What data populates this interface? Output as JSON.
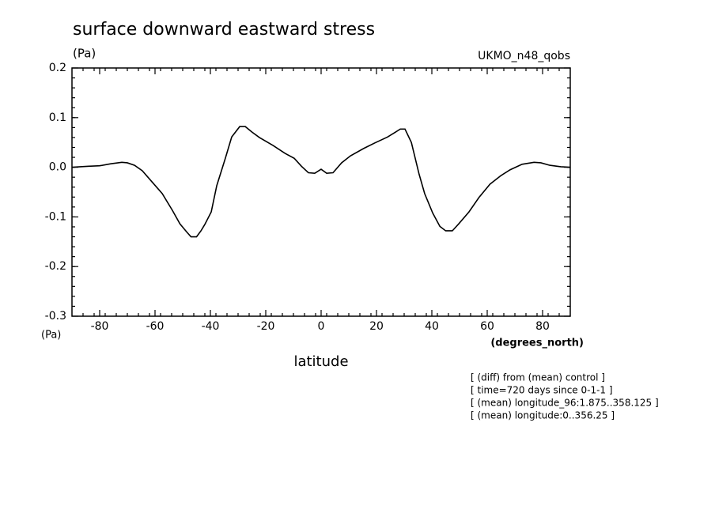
{
  "chart_data": {
    "type": "line",
    "title": "surface downward eastward stress",
    "y_unit_top": "(Pa)",
    "y_unit_bottom": "(Pa)",
    "dataset": "UKMO_n48_qobs",
    "x_unit": "(degrees_north)",
    "x_label": "latitude",
    "notes": [
      "[ (diff) from (mean) control ]",
      "[ time=720 days since 0-1-1 ]",
      "[ (mean) longitude_96:1.875..358.125 ]",
      "[ (mean) longitude:0..356.25 ]"
    ],
    "color": "#000000",
    "x": [
      -90,
      -84,
      -80,
      -76,
      -72,
      -70,
      -67.4,
      -64.6,
      -61,
      -57.4,
      -53.7,
      -51,
      -48.6,
      -47,
      -45,
      -43.4,
      -42,
      -39.7,
      -37.7,
      -34.6,
      -32.3,
      -29.4,
      -27.4,
      -25,
      -22.3,
      -17.4,
      -13,
      -9.7,
      -7.1,
      -4.6,
      -2.3,
      0,
      2,
      4.3,
      7.4,
      10.6,
      15.4,
      19.4,
      24,
      26.9,
      28.6,
      30.3,
      32.6,
      35.4,
      37.4,
      40.3,
      42.9,
      45,
      47.4,
      49.7,
      53.4,
      57,
      61,
      64.9,
      68.3,
      72.6,
      76.9,
      79.4,
      82.6,
      86.6,
      90
    ],
    "values": [
      0.0,
      0.002,
      0.003,
      0.007,
      0.01,
      0.009,
      0.004,
      -0.007,
      -0.03,
      -0.053,
      -0.087,
      -0.114,
      -0.13,
      -0.14,
      -0.14,
      -0.128,
      -0.115,
      -0.09,
      -0.037,
      0.018,
      0.061,
      0.082,
      0.082,
      0.071,
      0.06,
      0.044,
      0.028,
      0.018,
      0.002,
      -0.011,
      -0.012,
      -0.004,
      -0.012,
      -0.011,
      0.009,
      0.023,
      0.038,
      0.049,
      0.061,
      0.071,
      0.077,
      0.077,
      0.05,
      -0.014,
      -0.053,
      -0.092,
      -0.119,
      -0.128,
      -0.128,
      -0.114,
      -0.09,
      -0.061,
      -0.034,
      -0.017,
      -0.005,
      0.006,
      0.01,
      0.009,
      0.004,
      0.001,
      0.0
    ],
    "xlim": [
      -90,
      90
    ],
    "ylim": [
      -0.3,
      0.2
    ],
    "xticks": [
      -80,
      -60,
      -40,
      -20,
      0,
      20,
      40,
      60,
      80
    ],
    "yticks": [
      0.2,
      0.1,
      {
        "value": 0,
        "label": "0.0"
      },
      -0.1,
      -0.2,
      -0.3
    ]
  }
}
